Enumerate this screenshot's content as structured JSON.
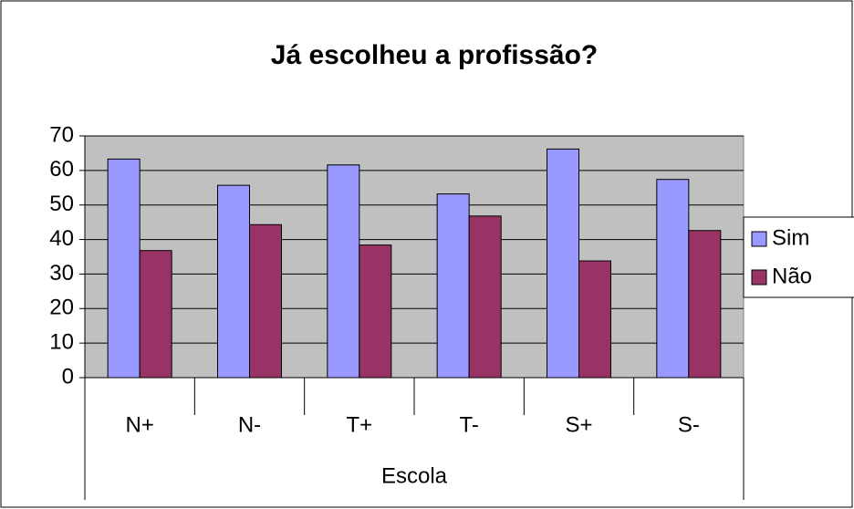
{
  "chart_data": {
    "type": "bar",
    "title": "Já escolheu a profissão?",
    "x_label": "Escola",
    "categories": [
      "N+",
      "N-",
      "T+",
      "T-",
      "S+",
      "S-"
    ],
    "series": [
      {
        "name": "Sim",
        "color": "#9999ff",
        "values": [
          63.3,
          55.7,
          61.6,
          53.2,
          66.2,
          57.4
        ]
      },
      {
        "name": "Não",
        "color": "#993366",
        "values": [
          36.8,
          44.3,
          38.4,
          46.8,
          33.8,
          42.6
        ]
      }
    ],
    "ylim": [
      0,
      70
    ],
    "yticks": [
      0,
      10,
      20,
      30,
      40,
      50,
      60,
      70
    ],
    "grid": true,
    "legend": "right"
  }
}
